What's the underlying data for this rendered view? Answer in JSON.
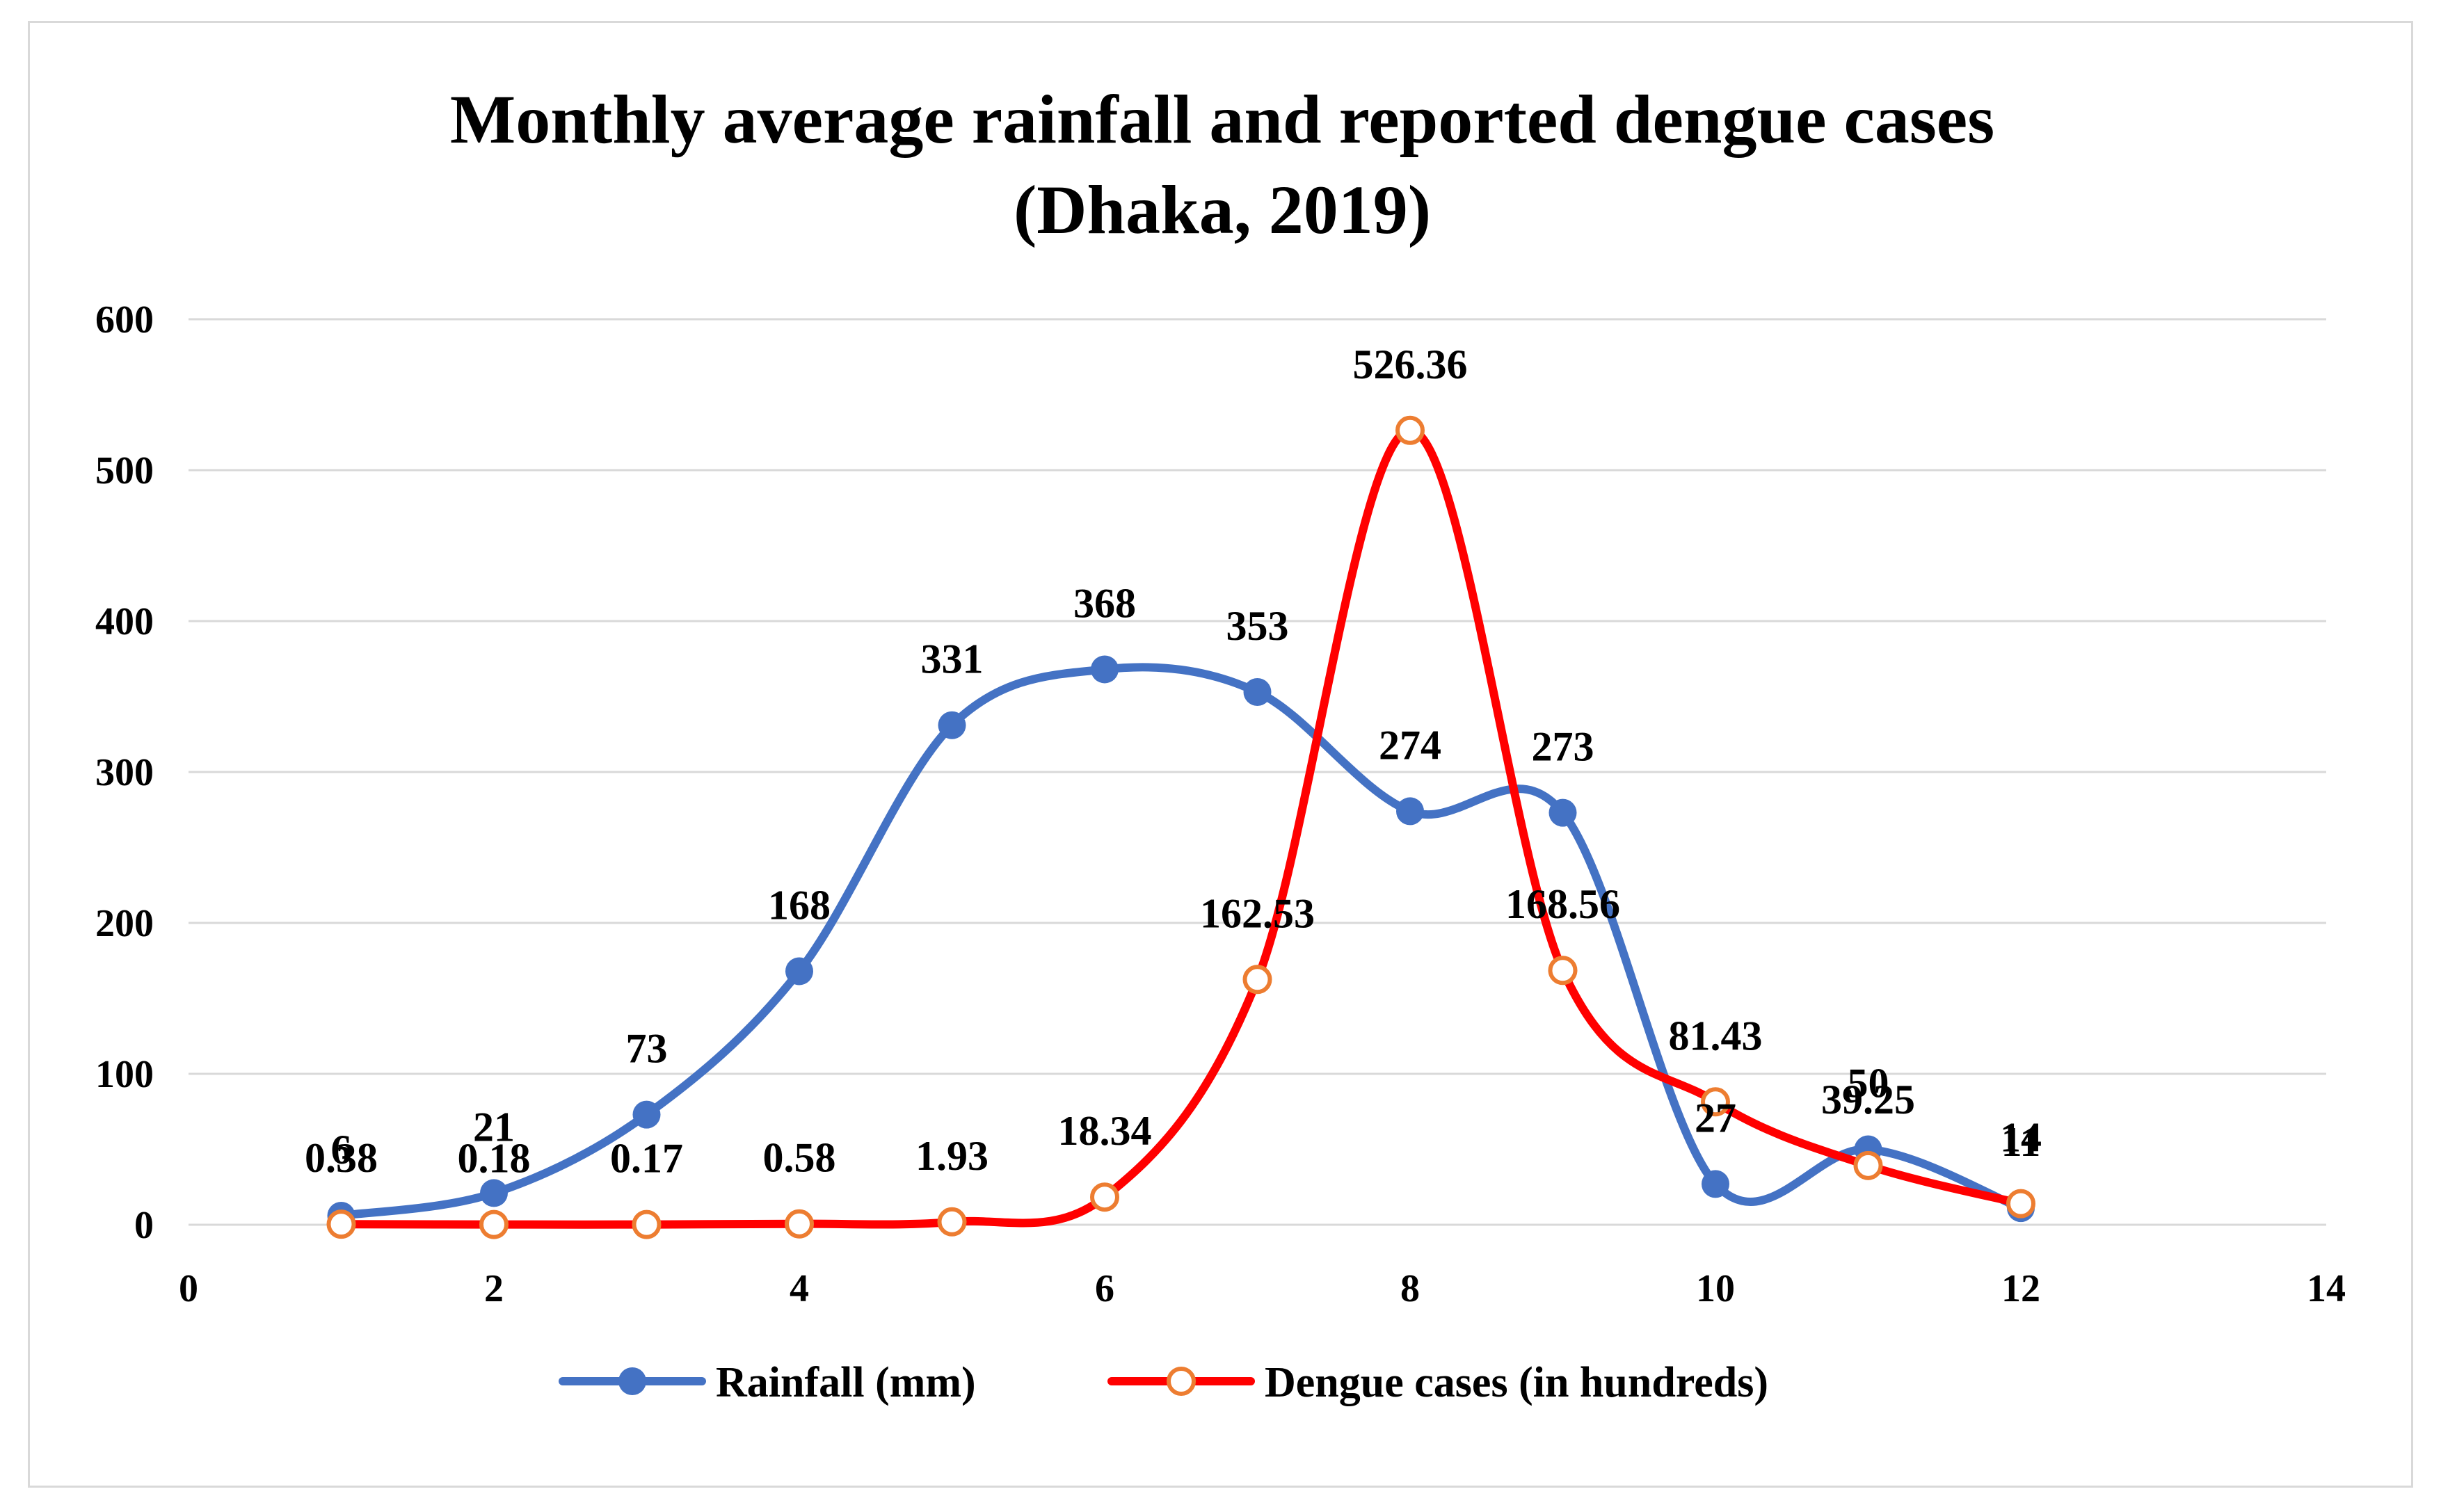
{
  "chart_data": {
    "type": "scatter",
    "title": [
      "Monthly average rainfall and reported dengue cases",
      "(Dhaka, 2019)"
    ],
    "xlabel": "",
    "ylabel": "",
    "xlim": [
      0,
      14
    ],
    "ylim": [
      0,
      600
    ],
    "x_ticks": [
      0,
      2,
      4,
      6,
      8,
      10,
      12,
      14
    ],
    "y_ticks": [
      0,
      100,
      200,
      300,
      400,
      500,
      600
    ],
    "grid": "horizontal",
    "legend_position": "bottom",
    "smooth": true,
    "series": [
      {
        "name": "Rainfall (mm)",
        "color": "#4472c4",
        "marker": "filled-circle",
        "x": [
          1,
          2,
          3,
          4,
          5,
          6,
          7,
          8,
          9,
          10,
          11,
          12
        ],
        "y": [
          6,
          21,
          73,
          168,
          331,
          368,
          353,
          274,
          273,
          27,
          50,
          11
        ],
        "labels": [
          "6",
          "21",
          "73",
          "168",
          "331",
          "368",
          "353",
          "274",
          "273",
          "27",
          "50",
          "11"
        ]
      },
      {
        "name": "Dengue cases  (in hundreds)",
        "color": "#ff0000",
        "marker": "hollow-circle",
        "marker_edge": "#ed7d31",
        "x": [
          1,
          2,
          3,
          4,
          5,
          6,
          7,
          8,
          9,
          10,
          11,
          12
        ],
        "y": [
          0.38,
          0.18,
          0.17,
          0.58,
          1.93,
          18.34,
          162.53,
          526.36,
          168.56,
          81.43,
          39.25,
          14
        ],
        "labels": [
          "0.38",
          "0.18",
          "0.17",
          "0.58",
          "1.93",
          "18.34",
          "162.53",
          "526.36",
          "168.56",
          "81.43",
          "39.25",
          "14"
        ]
      }
    ]
  }
}
